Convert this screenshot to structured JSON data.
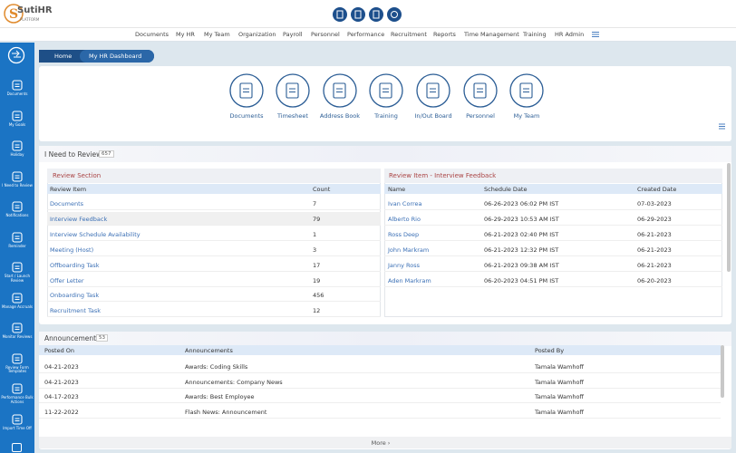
{
  "header": {
    "logo": "SutiHR",
    "logo_sub": "PLATFORM"
  },
  "nav": [
    "Documents",
    "My HR",
    "My Team",
    "Organization",
    "Payroll",
    "Personnel",
    "Performance",
    "Recruitment",
    "Reports",
    "Time Management",
    "Training",
    "HR Admin"
  ],
  "sidebar": [
    "Documents",
    "My Goals",
    "Holiday",
    "I Need to Review",
    "Notifications",
    "Reminder",
    "Start / Launch Review",
    "Manage Accruals",
    "Monitor Reviews",
    "Review Form Templates",
    "Performance Bulk Actions",
    "Import Time Off"
  ],
  "breadcrumb": [
    "Home",
    "My HR Dashboard"
  ],
  "quick_links": [
    "Documents",
    "Timesheet",
    "Address Book",
    "Training",
    "In/Out Board",
    "Personnel",
    "My Team"
  ],
  "review": {
    "title": "I Need to Review",
    "count": 657,
    "section": {
      "title": "Review Section",
      "columns": [
        "Review Item",
        "Count"
      ],
      "rows": [
        [
          "Documents",
          7
        ],
        [
          "Interview Feedback",
          79
        ],
        [
          "Interview Schedule Availability",
          1
        ],
        [
          "Meeting (Host)",
          3
        ],
        [
          "Offboarding Task",
          17
        ],
        [
          "Offer Letter",
          19
        ],
        [
          "Onboarding Task",
          456
        ],
        [
          "Recruitment Task",
          12
        ]
      ]
    },
    "detail": {
      "title": "Review Item - Interview Feedback",
      "columns": [
        "Name",
        "Schedule Date",
        "Created Date"
      ],
      "rows": [
        [
          "Ivan Correa",
          "06-26-2023 06:02 PM IST",
          "07-03-2023"
        ],
        [
          "Alberto Rio",
          "06-29-2023 10:53 AM IST",
          "06-29-2023"
        ],
        [
          "Ross Deep",
          "06-21-2023 02:40 PM IST",
          "06-21-2023"
        ],
        [
          "John Markram",
          "06-21-2023 12:32 PM IST",
          "06-21-2023"
        ],
        [
          "Janny Ross",
          "06-21-2023 09:38 AM IST",
          "06-21-2023"
        ],
        [
          "Aden Markram",
          "06-20-2023 04:51 PM IST",
          "06-20-2023"
        ]
      ]
    }
  },
  "announcements": {
    "title": "Announcements",
    "count": 53,
    "columns": [
      "Posted On",
      "Announcements",
      "Posted By"
    ],
    "rows": [
      [
        "04-21-2023",
        "Awards: Coding Skills",
        "Tamala Wamhoff"
      ],
      [
        "04-21-2023",
        "Announcements: Company News",
        "Tamala Wamhoff"
      ],
      [
        "04-17-2023",
        "Awards: Best Employee",
        "Tamala Wamhoff"
      ],
      [
        "11-22-2022",
        "Flash News: Announcement",
        "Tamala Wamhoff"
      ]
    ],
    "more": "More ›"
  }
}
